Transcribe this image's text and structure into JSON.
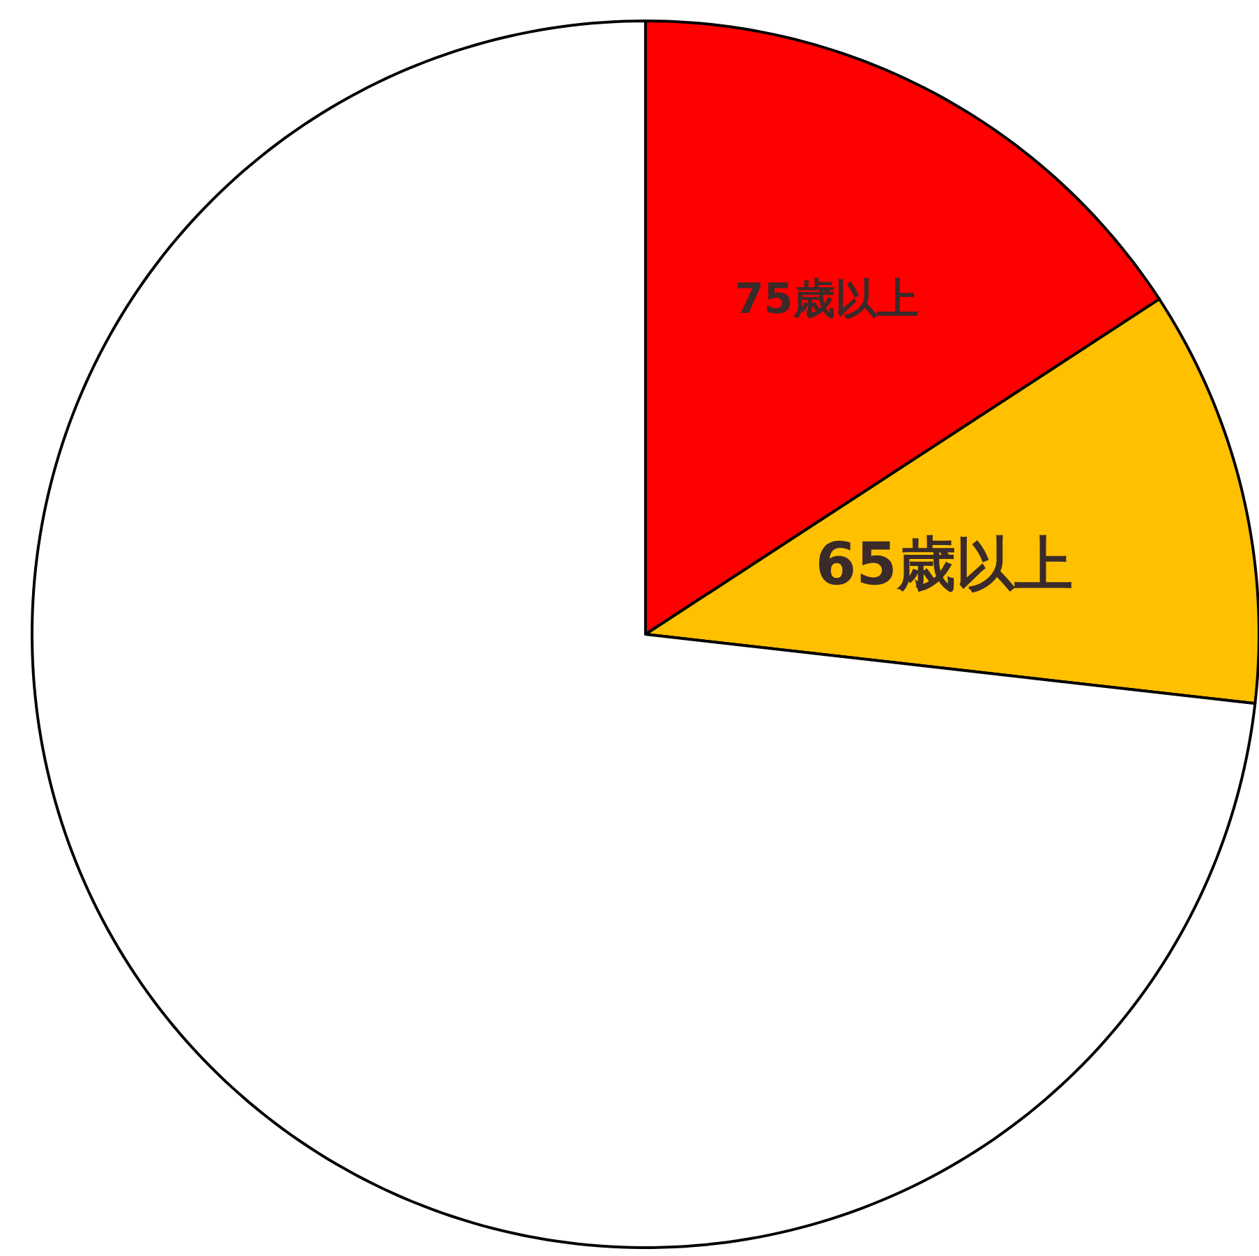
{
  "chart_data": {
    "type": "pie",
    "categories": [
      "75歳以上",
      "65歳以上",
      null
    ],
    "values": [
      15.8,
      11.0,
      73.2
    ],
    "colors": [
      "#ff0000",
      "#ffc000",
      "#ffffff"
    ]
  }
}
